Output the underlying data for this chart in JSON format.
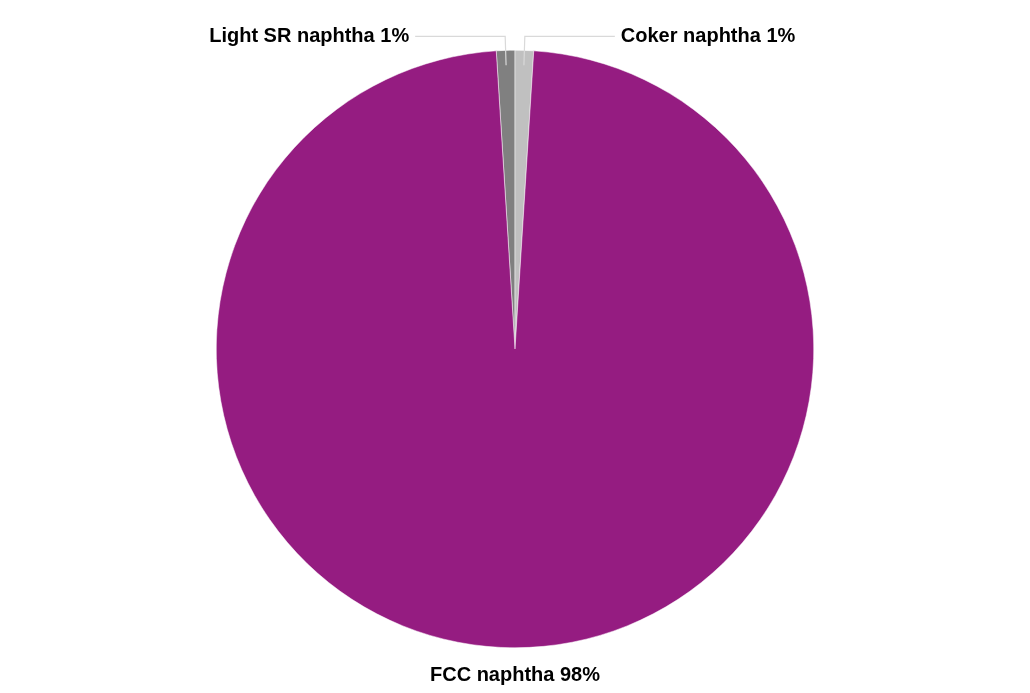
{
  "chart_data": {
    "type": "pie",
    "categories": [
      "Light SR naphtha",
      "Coker naphtha",
      "FCC naphtha"
    ],
    "values": [
      1,
      1,
      98
    ],
    "colors": [
      "#808080",
      "#c0c0c0",
      "#951c81"
    ],
    "value_labels": [
      "1%",
      "1%",
      "98%"
    ],
    "legend": false
  }
}
